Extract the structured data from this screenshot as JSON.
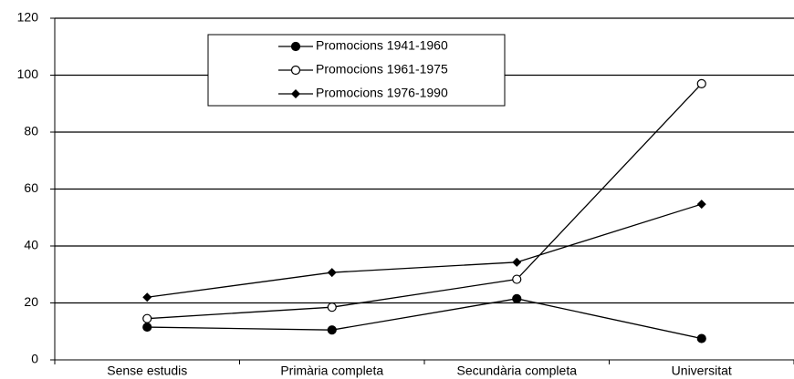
{
  "chart_data": {
    "type": "line",
    "categories": [
      "Sense estudis",
      "Primària completa",
      "Secundària completa",
      "Universitat"
    ],
    "series": [
      {
        "name": "Promocions 1941-1960",
        "color": "#000000",
        "marker": "filled-circle",
        "values": [
          11.5,
          10.5,
          21.5,
          7.5
        ]
      },
      {
        "name": "Promocions 1961-1975",
        "color": "#000000",
        "marker": "open-circle",
        "values": [
          14.5,
          18.5,
          28.3,
          97
        ]
      },
      {
        "name": "Promocions 1976-1990",
        "color": "#000000",
        "marker": "diamond",
        "values": [
          22,
          30.7,
          34.3,
          54.7
        ]
      }
    ],
    "ylim": [
      0,
      120
    ],
    "yticks": [
      0,
      20,
      40,
      60,
      80,
      100,
      120
    ],
    "grid": true,
    "legend": "top"
  }
}
